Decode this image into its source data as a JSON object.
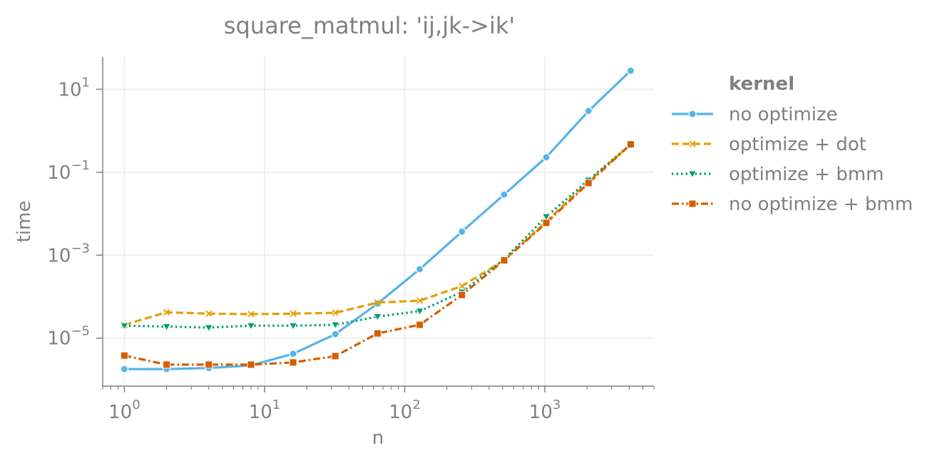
{
  "chart_data": {
    "type": "line",
    "title": "square_matmul: 'ij,jk->ik'",
    "xlabel": "n",
    "ylabel": "time",
    "xscale": "log",
    "yscale": "log",
    "xlim": [
      0.7,
      6000
    ],
    "ylim": [
      7e-07,
      60
    ],
    "grid": true,
    "legend_title": "kernel",
    "legend_position": "right",
    "x_ticks": [
      {
        "value": 1,
        "base": "10",
        "exp": "0"
      },
      {
        "value": 10,
        "base": "10",
        "exp": "1"
      },
      {
        "value": 100,
        "base": "10",
        "exp": "2"
      },
      {
        "value": 1000,
        "base": "10",
        "exp": "3"
      }
    ],
    "y_ticks": [
      {
        "value": 10,
        "base": "10",
        "exp": "1"
      },
      {
        "value": 0.1,
        "base": "10",
        "exp": "−1"
      },
      {
        "value": 0.001,
        "base": "10",
        "exp": "−3"
      },
      {
        "value": 1e-05,
        "base": "10",
        "exp": "−5"
      }
    ],
    "x": [
      1,
      2,
      4,
      8,
      16,
      32,
      64,
      128,
      256,
      512,
      1024,
      2048,
      4096
    ],
    "series": [
      {
        "name": "no optimize",
        "color": "#56b4e9",
        "dash": "solid",
        "marker": "circle",
        "values": [
          1.8e-06,
          1.8e-06,
          1.9e-06,
          2.2e-06,
          4.2e-06,
          1.25e-05,
          6.8e-05,
          0.00046,
          0.0037,
          0.029,
          0.23,
          3.0,
          28
        ]
      },
      {
        "name": "optimize + dot",
        "color": "#e69f00",
        "dash": "dashed",
        "marker": "x",
        "values": [
          2.1e-05,
          4.2e-05,
          3.9e-05,
          3.8e-05,
          3.9e-05,
          4.1e-05,
          7.2e-05,
          8e-05,
          0.00018,
          0.00075,
          0.0065,
          0.06,
          0.47
        ]
      },
      {
        "name": "optimize + bmm",
        "color": "#009e73",
        "dash": "dotted",
        "marker": "triangle-down",
        "values": [
          2e-05,
          1.9e-05,
          1.8e-05,
          2e-05,
          2e-05,
          2.1e-05,
          3.3e-05,
          4.5e-05,
          0.00013,
          0.0008,
          0.0085,
          0.065,
          0.47
        ]
      },
      {
        "name": "no optimize + bmm",
        "color": "#d55e00",
        "dash": "dashdot",
        "marker": "square",
        "values": [
          3.8e-06,
          2.3e-06,
          2.3e-06,
          2.3e-06,
          2.6e-06,
          3.7e-06,
          1.3e-05,
          2.1e-05,
          0.00011,
          0.00075,
          0.006,
          0.055,
          0.47
        ]
      }
    ]
  }
}
